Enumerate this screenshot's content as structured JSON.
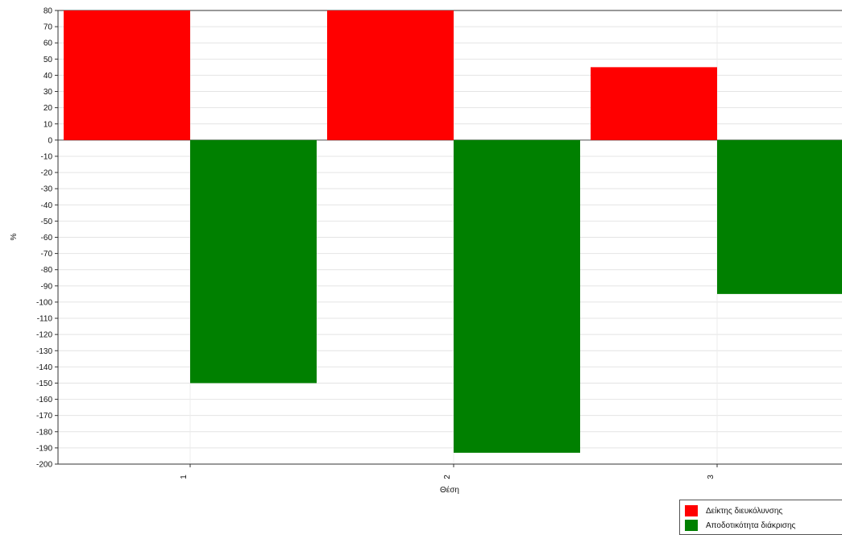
{
  "chart_data": {
    "type": "bar",
    "categories": [
      "1",
      "2",
      "3"
    ],
    "series": [
      {
        "name": "Δείκτης διευκόλυνσης",
        "color": "#ff0000",
        "values": [
          80,
          80,
          45
        ]
      },
      {
        "name": "Αποδοτικότητα διάκρισης",
        "color": "#008000",
        "values": [
          -150,
          -193,
          -95
        ]
      }
    ],
    "xlabel": "Θέση",
    "ylabel": "%",
    "ylim": [
      -200,
      80
    ],
    "ytick_step": 10,
    "grid": true,
    "legend_position": "bottom-right"
  },
  "legend": {
    "items": [
      {
        "label": "Δείκτης διευκόλυνσης",
        "color": "#ff0000"
      },
      {
        "label": "Αποδοτικότητα διάκρισης",
        "color": "#008000"
      }
    ]
  }
}
